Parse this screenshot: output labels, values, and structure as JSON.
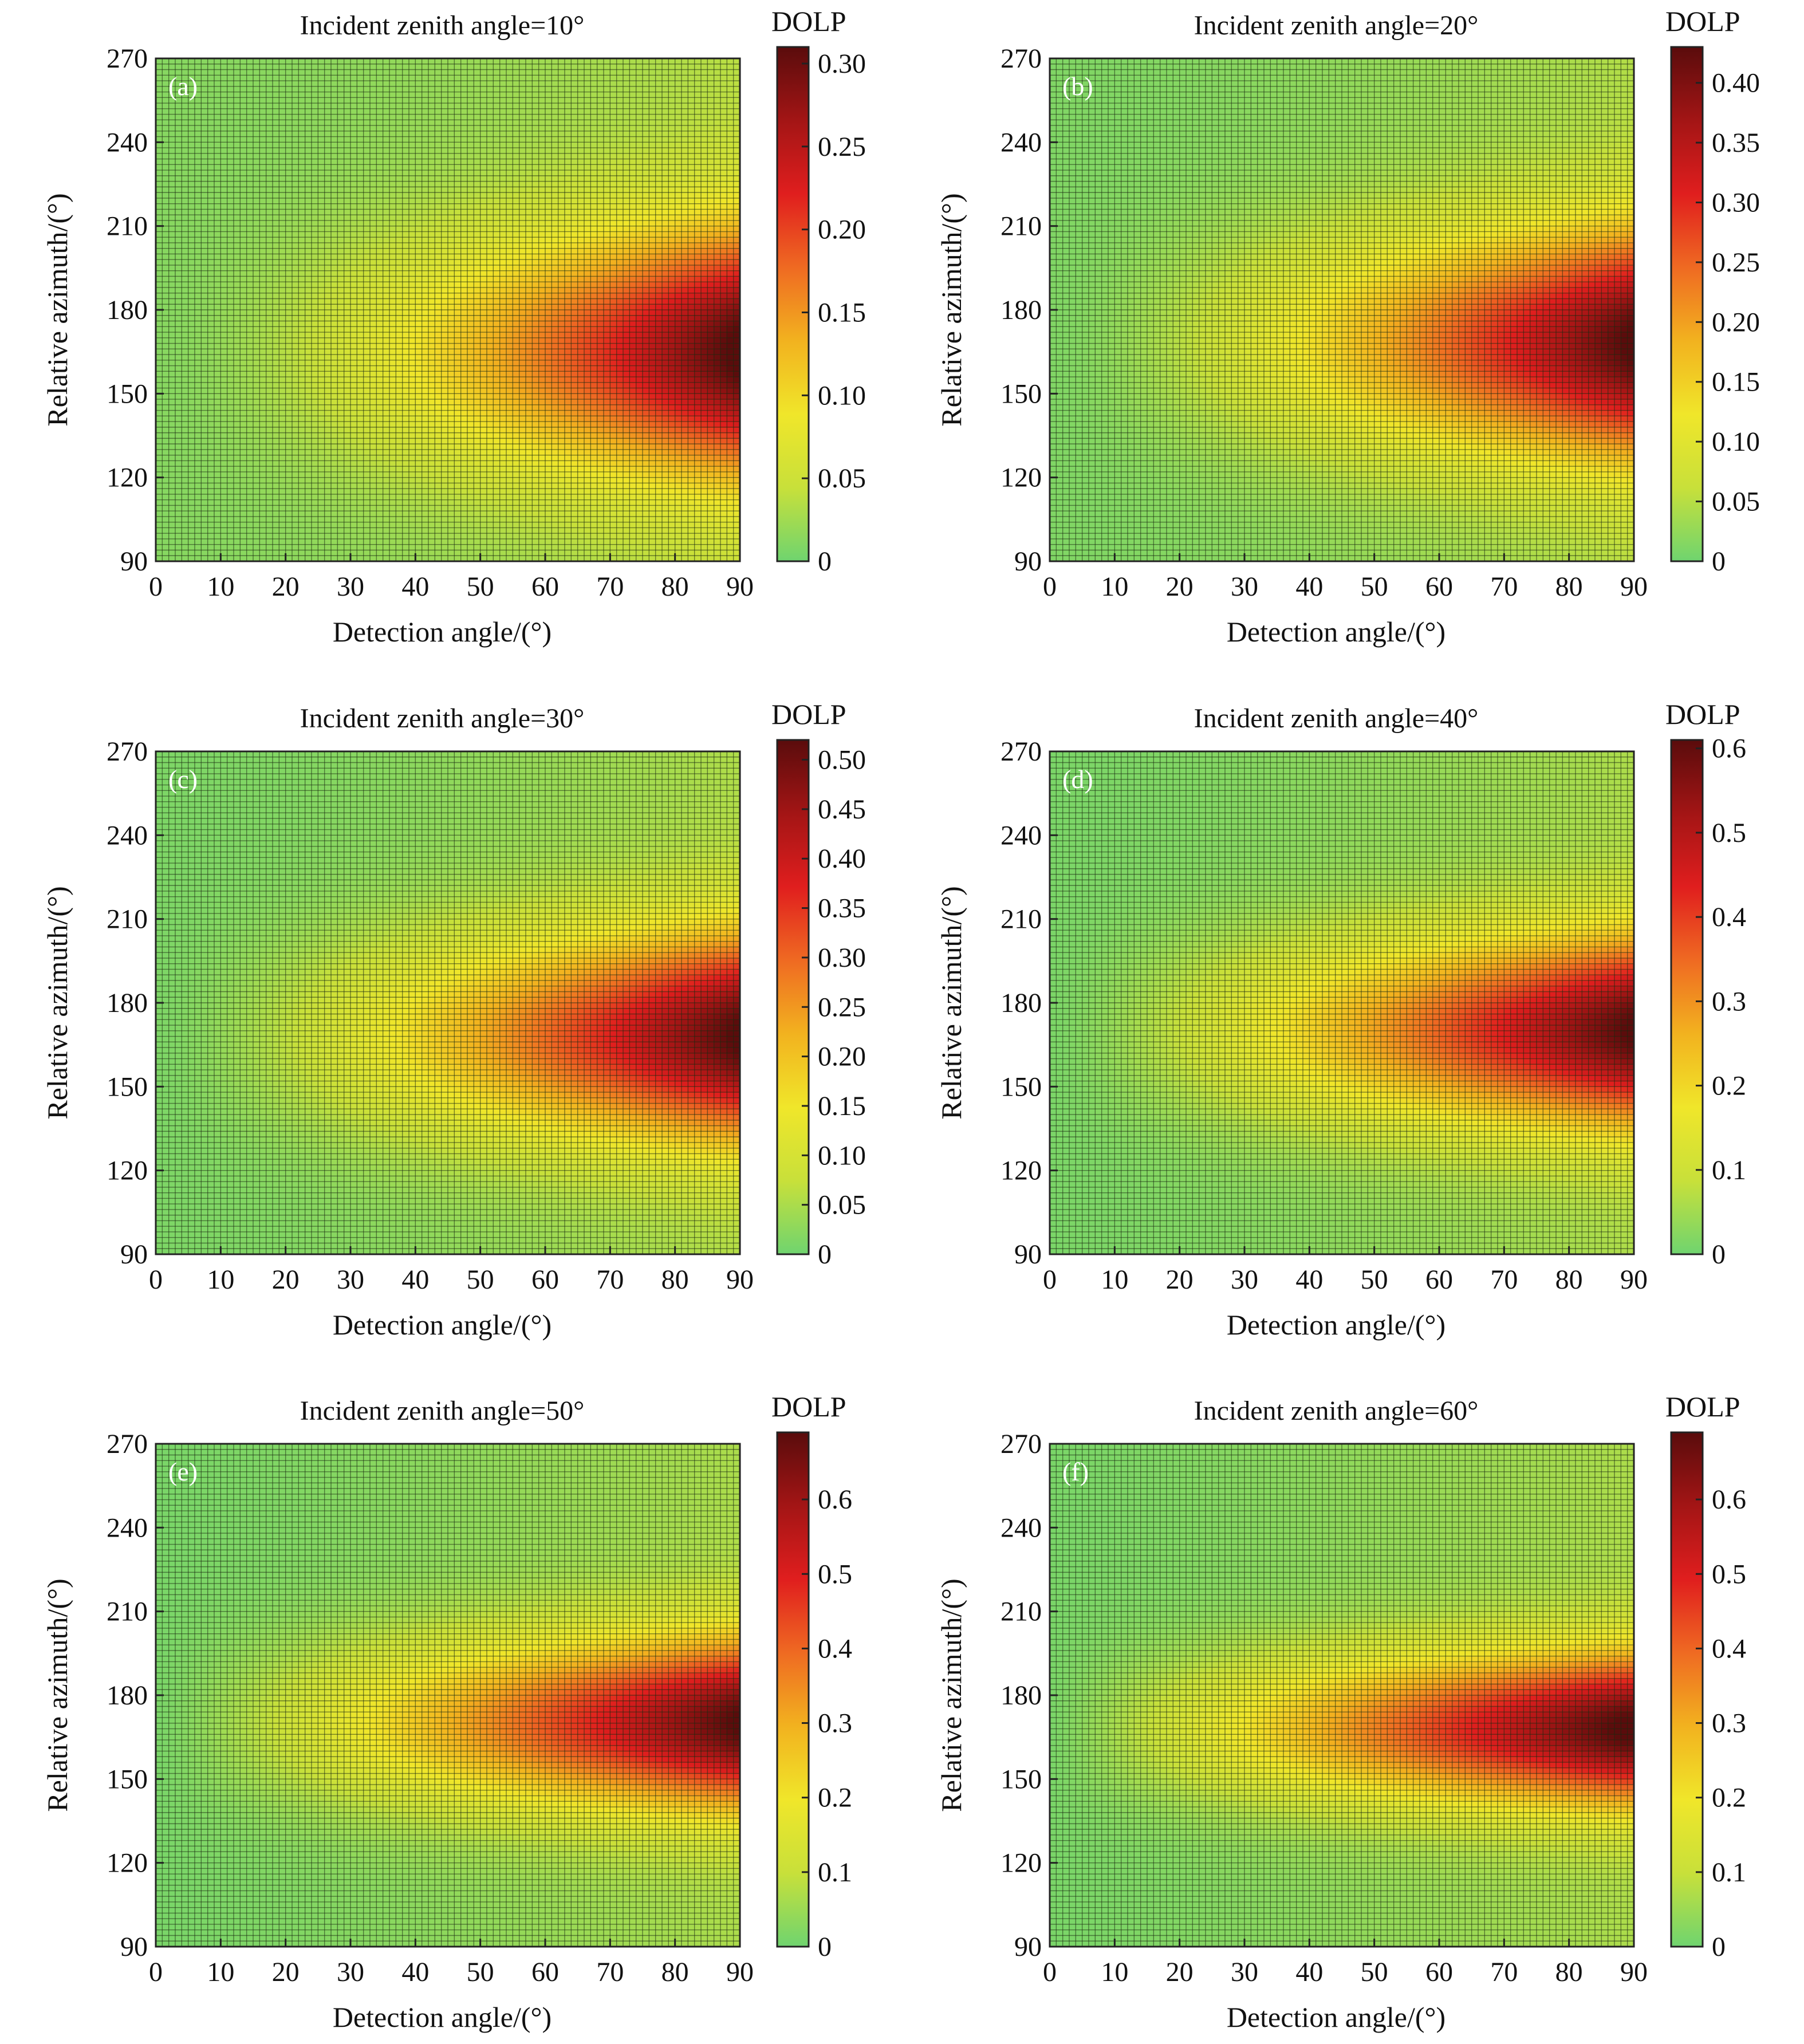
{
  "figure": {
    "colormap": [
      "#6fd46f",
      "#c8e03a",
      "#f0e62a",
      "#f2b21f",
      "#ef6a22",
      "#e01e1e",
      "#a31515",
      "#5a0c0c"
    ]
  },
  "chart_data": [
    {
      "type": "heatmap",
      "panel_label": "(a)",
      "title": "Incident zenith angle=10°",
      "xlabel": "Detection angle/(°)",
      "ylabel": "Relative azimuth/(°)",
      "colorbar_label": "DOLP",
      "x_ticks": [
        0,
        10,
        20,
        30,
        40,
        50,
        60,
        70,
        80,
        90
      ],
      "y_ticks": [
        90,
        120,
        150,
        180,
        210,
        240,
        270
      ],
      "xlim": [
        0,
        90
      ],
      "ylim": [
        90,
        270
      ],
      "colorbar_ticks": [
        "0",
        "0.05",
        "0.10",
        "0.15",
        "0.20",
        "0.25",
        "0.30"
      ],
      "value_range": [
        0,
        0.31
      ],
      "peak": {
        "x": 90,
        "y": 165,
        "value": 0.31
      },
      "grid": true
    },
    {
      "type": "heatmap",
      "panel_label": "(b)",
      "title": "Incident zenith angle=20°",
      "xlabel": "Detection angle/(°)",
      "ylabel": "Relative azimuth/(°)",
      "colorbar_label": "DOLP",
      "x_ticks": [
        0,
        10,
        20,
        30,
        40,
        50,
        60,
        70,
        80,
        90
      ],
      "y_ticks": [
        90,
        120,
        150,
        180,
        210,
        240,
        270
      ],
      "xlim": [
        0,
        90
      ],
      "ylim": [
        90,
        270
      ],
      "colorbar_ticks": [
        "0",
        "0.05",
        "0.10",
        "0.15",
        "0.20",
        "0.25",
        "0.30",
        "0.35",
        "0.40"
      ],
      "value_range": [
        0,
        0.43
      ],
      "peak": {
        "x": 90,
        "y": 168,
        "value": 0.43
      },
      "grid": true
    },
    {
      "type": "heatmap",
      "panel_label": "(c)",
      "title": "Incident zenith angle=30°",
      "xlabel": "Detection angle/(°)",
      "ylabel": "Relative azimuth/(°)",
      "colorbar_label": "DOLP",
      "x_ticks": [
        0,
        10,
        20,
        30,
        40,
        50,
        60,
        70,
        80,
        90
      ],
      "y_ticks": [
        90,
        120,
        150,
        180,
        210,
        240,
        270
      ],
      "xlim": [
        0,
        90
      ],
      "ylim": [
        90,
        270
      ],
      "colorbar_ticks": [
        "0",
        "0.05",
        "0.10",
        "0.15",
        "0.20",
        "0.25",
        "0.30",
        "0.35",
        "0.40",
        "0.45",
        "0.50"
      ],
      "value_range": [
        0,
        0.52
      ],
      "peak": {
        "x": 90,
        "y": 168,
        "value": 0.52
      },
      "grid": true
    },
    {
      "type": "heatmap",
      "panel_label": "(d)",
      "title": "Incident zenith angle=40°",
      "xlabel": "Detection angle/(°)",
      "ylabel": "Relative azimuth/(°)",
      "colorbar_label": "DOLP",
      "x_ticks": [
        0,
        10,
        20,
        30,
        40,
        50,
        60,
        70,
        80,
        90
      ],
      "y_ticks": [
        90,
        120,
        150,
        180,
        210,
        240,
        270
      ],
      "xlim": [
        0,
        90
      ],
      "ylim": [
        90,
        270
      ],
      "colorbar_ticks": [
        "0",
        "0.1",
        "0.2",
        "0.3",
        "0.4",
        "0.5",
        "0.6"
      ],
      "value_range": [
        0,
        0.61
      ],
      "peak": {
        "x": 90,
        "y": 170,
        "value": 0.61
      },
      "grid": true
    },
    {
      "type": "heatmap",
      "panel_label": "(e)",
      "title": "Incident zenith angle=50°",
      "xlabel": "Detection angle/(°)",
      "ylabel": "Relative azimuth/(°)",
      "colorbar_label": "DOLP",
      "x_ticks": [
        0,
        10,
        20,
        30,
        40,
        50,
        60,
        70,
        80,
        90
      ],
      "y_ticks": [
        90,
        120,
        150,
        180,
        210,
        240,
        270
      ],
      "xlim": [
        0,
        90
      ],
      "ylim": [
        90,
        270
      ],
      "colorbar_ticks": [
        "0",
        "0.1",
        "0.2",
        "0.3",
        "0.4",
        "0.5",
        "0.6"
      ],
      "value_range": [
        0,
        0.69
      ],
      "peak": {
        "x": 90,
        "y": 170,
        "value": 0.69
      },
      "grid": true
    },
    {
      "type": "heatmap",
      "panel_label": "(f)",
      "title": "Incident zenith angle=60°",
      "xlabel": "Detection angle/(°)",
      "ylabel": "Relative azimuth/(°)",
      "colorbar_label": "DOLP",
      "x_ticks": [
        0,
        10,
        20,
        30,
        40,
        50,
        60,
        70,
        80,
        90
      ],
      "y_ticks": [
        90,
        120,
        150,
        180,
        210,
        240,
        270
      ],
      "xlim": [
        0,
        90
      ],
      "ylim": [
        90,
        270
      ],
      "colorbar_ticks": [
        "0",
        "0.1",
        "0.2",
        "0.3",
        "0.4",
        "0.5",
        "0.6"
      ],
      "value_range": [
        0,
        0.69
      ],
      "peak": {
        "x": 88,
        "y": 168,
        "value": 0.69
      },
      "grid": true
    }
  ]
}
